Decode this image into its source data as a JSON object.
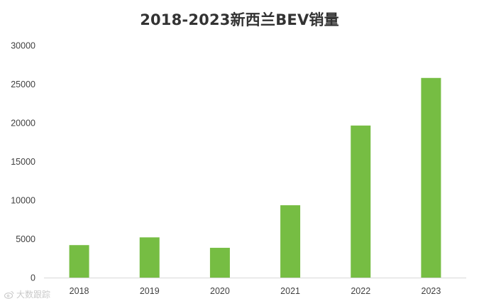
{
  "chart_data": {
    "type": "bar",
    "title": "2018-2023新西兰BEV销量",
    "categories": [
      "2018",
      "2019",
      "2020",
      "2021",
      "2022",
      "2023"
    ],
    "values": [
      4200,
      5200,
      3850,
      9350,
      19650,
      25800
    ],
    "ylim": [
      0,
      30000
    ],
    "yticks": [
      0,
      5000,
      10000,
      15000,
      20000,
      25000,
      30000
    ],
    "xlabel": "",
    "ylabel": "",
    "grid": false,
    "legend": "none",
    "bar_color": "#76bd43",
    "axis_color": "#d9d9d9",
    "tick_label_color": "#404040"
  },
  "watermark": {
    "text": "大数跟踪",
    "icon": "sina-weibo-icon"
  }
}
